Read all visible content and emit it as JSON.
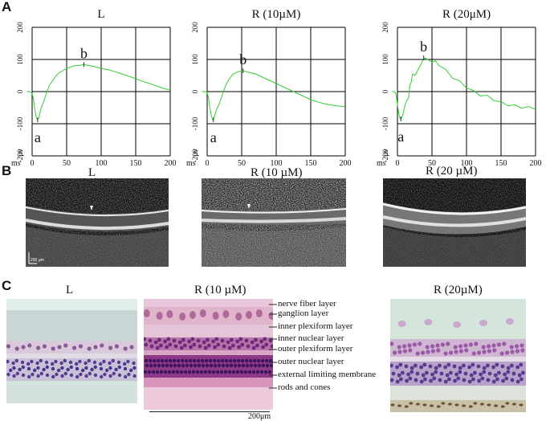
{
  "panels": {
    "A": "A",
    "B": "B",
    "C": "C"
  },
  "chart_data": [
    {
      "type": "line",
      "title": "L",
      "xlabel": "ms",
      "ylabel": "µv",
      "xlim": [
        0,
        200
      ],
      "ylim": [
        -200,
        200
      ],
      "x_ticks": [
        "0",
        "50",
        "100",
        "150",
        "200"
      ],
      "y_ticks": [
        "200",
        "100",
        "0",
        "-100",
        "-200"
      ],
      "grid": true,
      "series": [
        {
          "color": "#33cc33",
          "x": [
            -8,
            -4,
            0,
            2,
            4,
            6,
            8,
            10,
            12,
            14,
            17,
            20,
            25,
            30,
            35,
            40,
            50,
            60,
            70,
            75,
            80,
            90,
            100,
            110,
            120,
            130,
            140,
            150,
            160,
            170,
            180,
            190,
            200
          ],
          "y": [
            0,
            0,
            -5,
            -25,
            -55,
            -80,
            -88,
            -80,
            -60,
            -45,
            -30,
            -10,
            20,
            35,
            50,
            60,
            72,
            80,
            82,
            84,
            82,
            78,
            72,
            68,
            62,
            55,
            48,
            40,
            32,
            25,
            18,
            10,
            5
          ]
        }
      ],
      "annotations": [
        {
          "text": "a",
          "x": 8,
          "y": -88
        },
        {
          "text": "b",
          "x": 75,
          "y": 84
        }
      ]
    },
    {
      "type": "line",
      "title": "R (10µM)",
      "xlabel": "ms",
      "ylabel": "µv",
      "xlim": [
        0,
        200
      ],
      "ylim": [
        -200,
        200
      ],
      "x_ticks": [
        "0",
        "50",
        "100",
        "150",
        "200"
      ],
      "y_ticks": [
        "200",
        "100",
        "0",
        "-100",
        "-200"
      ],
      "grid": true,
      "series": [
        {
          "color": "#33cc33",
          "x": [
            -8,
            -4,
            0,
            2,
            4,
            6,
            8,
            10,
            12,
            15,
            18,
            22,
            27,
            32,
            38,
            45,
            52,
            60,
            70,
            80,
            90,
            100,
            110,
            120,
            130,
            140,
            150,
            160,
            170,
            180,
            190,
            200
          ],
          "y": [
            0,
            0,
            -3,
            -20,
            -50,
            -75,
            -88,
            -82,
            -65,
            -50,
            -35,
            -10,
            20,
            40,
            55,
            62,
            65,
            60,
            55,
            45,
            35,
            25,
            15,
            5,
            -5,
            -15,
            -25,
            -32,
            -38,
            -42,
            -45,
            -47
          ]
        }
      ],
      "annotations": [
        {
          "text": "a",
          "x": 9,
          "y": -88
        },
        {
          "text": "b",
          "x": 52,
          "y": 65
        }
      ]
    },
    {
      "type": "line",
      "title": "R (20μM)",
      "xlabel": "ms",
      "ylabel": "µv",
      "xlim": [
        0,
        200
      ],
      "ylim": [
        -200,
        200
      ],
      "x_ticks": [
        "0",
        "50",
        "100",
        "150",
        "200"
      ],
      "y_ticks": [
        "200",
        "100",
        "0",
        "-100",
        "-200"
      ],
      "grid": true,
      "series": [
        {
          "color": "#33cc33",
          "x": [
            -8,
            -4,
            -2,
            0,
            2,
            4,
            6,
            8,
            10,
            13,
            16,
            18,
            20,
            22,
            25,
            28,
            30,
            33,
            36,
            40,
            45,
            50,
            55,
            60,
            70,
            80,
            90,
            100,
            110,
            120,
            130,
            140,
            150,
            160,
            170,
            180,
            190,
            200
          ],
          "y": [
            0,
            0,
            -10,
            -40,
            -70,
            -85,
            -82,
            -70,
            -50,
            -30,
            -20,
            20,
            30,
            55,
            50,
            60,
            70,
            80,
            95,
            105,
            98,
            95,
            92,
            85,
            65,
            45,
            30,
            15,
            0,
            -10,
            -15,
            -25,
            -35,
            -40,
            -45,
            -48,
            -50,
            -52
          ]
        }
      ],
      "annotations": [
        {
          "text": "a",
          "x": 5,
          "y": -85
        },
        {
          "text": "b",
          "x": 38,
          "y": 105
        }
      ]
    }
  ],
  "oct": {
    "titles": [
      "L",
      "R (10 µM)",
      "R (20 µM)"
    ],
    "scale_label": "200 μm"
  },
  "histology": {
    "titles": [
      "L",
      "R (10 µM)",
      "R (20µM)"
    ],
    "layers": [
      "nerve fiber layer",
      "ganglion layer",
      "inner plexiform layer",
      "inner nuclear layer",
      "outer plexiform layer",
      "outer nuclear layer",
      "external limiting membrane",
      "rods and cones"
    ],
    "scale_label": "200μm"
  }
}
